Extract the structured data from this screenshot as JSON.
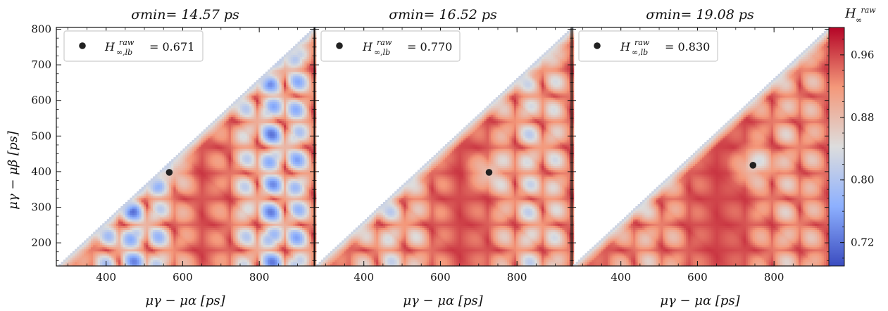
{
  "chart_data": {
    "type": "heatmap",
    "colorbar": {
      "label": "H∞raw",
      "label_main": "H",
      "label_sup": "raw",
      "label_sub": "∞",
      "range": [
        0.69,
        0.995
      ],
      "ticks": [
        0.72,
        0.8,
        0.88,
        0.96
      ],
      "tick_labels": [
        "0.72",
        "0.80",
        "0.88",
        "0.96"
      ],
      "colormap": "coolwarm"
    },
    "panels": [
      {
        "title": "σmin= 14.57 ps",
        "xlabel": "μγ − μα [ps]",
        "ylabel": "μγ − μβ [ps]",
        "xlim": [
          270,
          945
        ],
        "ylim": [
          135,
          805
        ],
        "xticks": [
          400,
          600,
          800
        ],
        "yticks": [
          200,
          300,
          400,
          500,
          600,
          700,
          800
        ],
        "legend_label": "H∞,lb = 0.671",
        "legend_main": "H",
        "legend_sup": "raw",
        "legend_sub": "∞,lb",
        "legend_value": "= 0.671",
        "marker": {
          "x": 565,
          "y": 398
        },
        "low_fraction": 0.22
      },
      {
        "title": "σmin= 16.52 ps",
        "xlabel": "μγ − μα [ps]",
        "ylabel": "",
        "xlim": [
          270,
          945
        ],
        "ylim": [
          135,
          805
        ],
        "xticks": [
          400,
          600,
          800
        ],
        "yticks": [
          200,
          300,
          400,
          500,
          600,
          700,
          800
        ],
        "legend_label": "H∞,lb = 0.770",
        "legend_main": "H",
        "legend_sup": "raw",
        "legend_sub": "∞,lb",
        "legend_value": "= 0.770",
        "marker": {
          "x": 727,
          "y": 398
        },
        "low_fraction": 0.1
      },
      {
        "title": "σmin= 19.08 ps",
        "xlabel": "μγ − μα [ps]",
        "ylabel": "",
        "xlim": [
          270,
          945
        ],
        "ylim": [
          135,
          805
        ],
        "xticks": [
          400,
          600,
          800
        ],
        "yticks": [
          200,
          300,
          400,
          500,
          600,
          700,
          800
        ],
        "legend_label": "H∞,lb = 0.830",
        "legend_main": "H",
        "legend_sup": "raw",
        "legend_sub": "∞,lb",
        "legend_value": "= 0.830",
        "marker": {
          "x": 745,
          "y": 418
        },
        "low_fraction": 0.04
      }
    ]
  }
}
